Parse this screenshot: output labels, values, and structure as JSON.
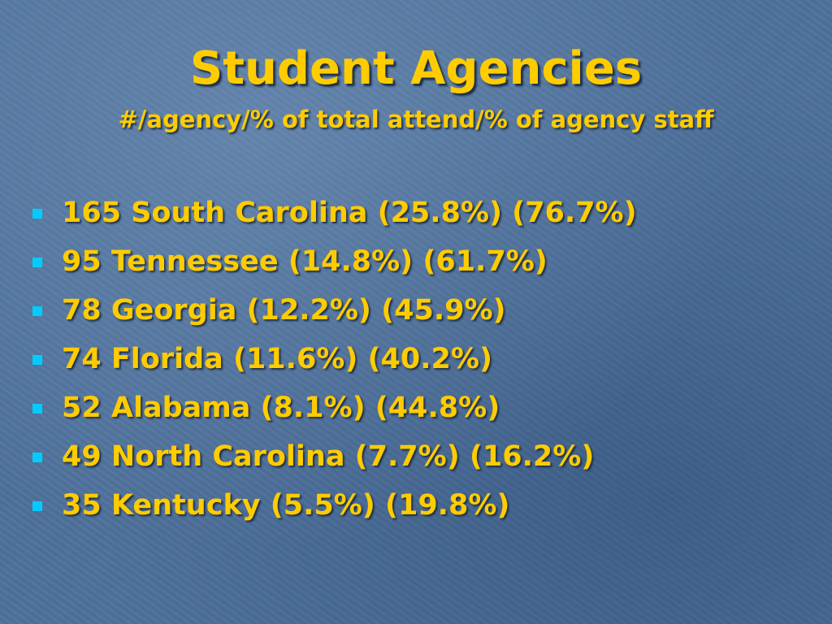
{
  "slide": {
    "title": "Student Agencies",
    "subtitle": "#/agency/% of total attend/% of agency staff",
    "bullets": [
      "165 South Carolina (25.8%) (76.7%)",
      "95 Tennessee (14.8%) (61.7%)",
      "78 Georgia (12.2%) (45.9%)",
      "74 Florida (11.6%) (40.2%)",
      "52 Alabama (8.1%) (44.8%)",
      "49 North Carolina (7.7%) (16.2%)",
      "35 Kentucky (5.5%) (19.8%)"
    ]
  }
}
